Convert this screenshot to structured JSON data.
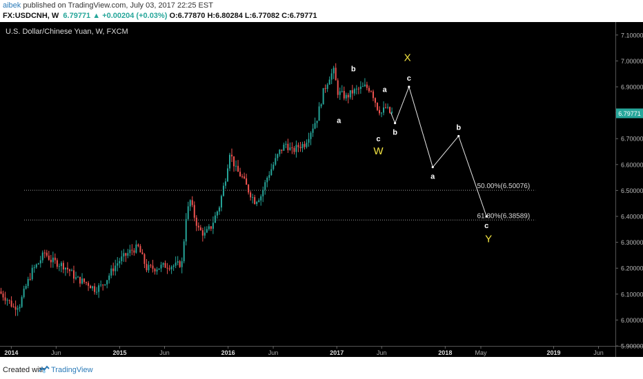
{
  "header": {
    "user": "aibek",
    "published_text": "published on TradingView.com, July 03, 2017 22:25 EST",
    "symbol": "FX:USDCNH, W",
    "last": "6.79771",
    "change": "+0.00204 (+0.03%)",
    "open": "O:6.77870",
    "high": "H:6.80284",
    "low": "L:6.77082",
    "close": "C:6.79771"
  },
  "footer": {
    "created_with": "Created with",
    "brand": "TradingView"
  },
  "colors": {
    "up": "#26a69a",
    "down": "#ef5350",
    "wave_white": "#ffffff",
    "wave_yellow": "#f5e642",
    "price_tag": "#26a69a"
  },
  "icons": {
    "price_change": "triangle-up-icon",
    "brand_logo": "tradingview-logo-icon"
  },
  "chart_data": {
    "type": "candlestick",
    "title": "U.S. Dollar/Chinese Yuan, W, FXCM",
    "y_axis_position": "right",
    "ylim": [
      5.9,
      7.15
    ],
    "y_ticks": [
      "7.10000",
      "7.00000",
      "6.90000",
      "6.80000",
      "6.70000",
      "6.60000",
      "6.50000",
      "6.40000",
      "6.30000",
      "6.20000",
      "6.10000",
      "6.00000",
      "5.90000"
    ],
    "x_range": [
      "2013-11-24",
      "2019-07-28"
    ],
    "x_ticks": [
      {
        "label": "2014",
        "date": "2014-01-01"
      },
      {
        "label": "Jun",
        "date": "2014-06-01"
      },
      {
        "label": "2015",
        "date": "2015-01-01"
      },
      {
        "label": "Jun",
        "date": "2015-06-01"
      },
      {
        "label": "2016",
        "date": "2016-01-01"
      },
      {
        "label": "Jun",
        "date": "2016-06-01"
      },
      {
        "label": "2017",
        "date": "2017-01-01"
      },
      {
        "label": "Jun",
        "date": "2017-06-01"
      },
      {
        "label": "2018",
        "date": "2018-01-01"
      },
      {
        "label": "May",
        "date": "2018-05-01"
      },
      {
        "label": "2019",
        "date": "2019-01-01"
      },
      {
        "label": "Jun",
        "date": "2019-06-01"
      }
    ],
    "last_price": {
      "label": "6.79771",
      "value": 6.79771
    },
    "fib_levels": [
      {
        "label": "50.00%(6.50076)",
        "value": 6.50076,
        "from": "2013-11-24",
        "to": "2018-11-01"
      },
      {
        "label": "61.80%(6.38589)",
        "value": 6.38589,
        "from": "2013-11-24",
        "to": "2018-11-01"
      }
    ],
    "price_path": [
      [
        "2013-11-24",
        6.11
      ],
      [
        "2013-12-22",
        6.08
      ],
      [
        "2014-01-12",
        6.05
      ],
      [
        "2014-02-02",
        6.06
      ],
      [
        "2014-02-23",
        6.13
      ],
      [
        "2014-03-16",
        6.19
      ],
      [
        "2014-04-06",
        6.22
      ],
      [
        "2014-04-27",
        6.26
      ],
      [
        "2014-05-18",
        6.23
      ],
      [
        "2014-06-08",
        6.22
      ],
      [
        "2014-06-29",
        6.21
      ],
      [
        "2014-07-20",
        6.19
      ],
      [
        "2014-08-10",
        6.16
      ],
      [
        "2014-08-31",
        6.15
      ],
      [
        "2014-09-21",
        6.14
      ],
      [
        "2014-10-12",
        6.12
      ],
      [
        "2014-11-02",
        6.13
      ],
      [
        "2014-11-23",
        6.16
      ],
      [
        "2014-12-14",
        6.2
      ],
      [
        "2015-01-04",
        6.23
      ],
      [
        "2015-01-25",
        6.25
      ],
      [
        "2015-02-15",
        6.27
      ],
      [
        "2015-03-08",
        6.28
      ],
      [
        "2015-03-22",
        6.24
      ],
      [
        "2015-04-05",
        6.2
      ],
      [
        "2015-05-03",
        6.2
      ],
      [
        "2015-06-07",
        6.21
      ],
      [
        "2015-07-12",
        6.21
      ],
      [
        "2015-08-02",
        6.22
      ],
      [
        "2015-08-16",
        6.4
      ],
      [
        "2015-08-30",
        6.46
      ],
      [
        "2015-09-13",
        6.4
      ],
      [
        "2015-09-27",
        6.35
      ],
      [
        "2015-10-18",
        6.33
      ],
      [
        "2015-11-08",
        6.36
      ],
      [
        "2015-12-06",
        6.44
      ],
      [
        "2015-12-27",
        6.55
      ],
      [
        "2016-01-10",
        6.65
      ],
      [
        "2016-01-31",
        6.58
      ],
      [
        "2016-02-21",
        6.55
      ],
      [
        "2016-03-13",
        6.5
      ],
      [
        "2016-04-03",
        6.46
      ],
      [
        "2016-04-24",
        6.48
      ],
      [
        "2016-05-15",
        6.55
      ],
      [
        "2016-06-05",
        6.6
      ],
      [
        "2016-06-26",
        6.65
      ],
      [
        "2016-07-17",
        6.68
      ],
      [
        "2016-08-07",
        6.65
      ],
      [
        "2016-08-28",
        6.67
      ],
      [
        "2016-09-18",
        6.68
      ],
      [
        "2016-10-09",
        6.73
      ],
      [
        "2016-10-30",
        6.78
      ],
      [
        "2016-11-20",
        6.88
      ],
      [
        "2016-12-11",
        6.94
      ],
      [
        "2016-12-25",
        6.96
      ],
      [
        "2017-01-08",
        6.88
      ],
      [
        "2017-01-22",
        6.87
      ],
      [
        "2017-02-05",
        6.86
      ],
      [
        "2017-02-26",
        6.88
      ],
      [
        "2017-03-19",
        6.89
      ],
      [
        "2017-04-09",
        6.9
      ],
      [
        "2017-04-30",
        6.89
      ],
      [
        "2017-05-21",
        6.82
      ],
      [
        "2017-06-04",
        6.8
      ],
      [
        "2017-06-18",
        6.82
      ],
      [
        "2017-07-02",
        6.8
      ]
    ],
    "projection": [
      {
        "date": "2017-07-16",
        "value": 6.76,
        "label": "b",
        "label_color": "white",
        "label_pos": "below"
      },
      {
        "date": "2017-09-01",
        "value": 6.9,
        "label": "c",
        "label_color": "white",
        "label_pos": "above"
      },
      {
        "date": "2017-11-20",
        "value": 6.59,
        "label": "a",
        "label_color": "white",
        "label_pos": "below"
      },
      {
        "date": "2018-02-15",
        "value": 6.71,
        "label": "b",
        "label_color": "white",
        "label_pos": "above"
      },
      {
        "date": "2018-05-20",
        "value": 6.4,
        "label": "c",
        "label_color": "white",
        "label_pos": "below"
      }
    ],
    "annotations": [
      {
        "text": "a",
        "date": "2017-01-08",
        "value": 6.76,
        "color": "white"
      },
      {
        "text": "b",
        "date": "2017-02-26",
        "value": 6.96,
        "color": "white"
      },
      {
        "text": "a",
        "date": "2017-06-11",
        "value": 6.88,
        "color": "white"
      },
      {
        "text": "c",
        "date": "2017-05-21",
        "value": 6.69,
        "color": "white"
      },
      {
        "text": "W",
        "date": "2017-05-21",
        "value": 6.64,
        "color": "yellow"
      },
      {
        "text": "X",
        "date": "2017-08-27",
        "value": 7.0,
        "color": "yellow"
      },
      {
        "text": "Y",
        "date": "2018-05-27",
        "value": 6.3,
        "color": "yellow"
      }
    ]
  }
}
